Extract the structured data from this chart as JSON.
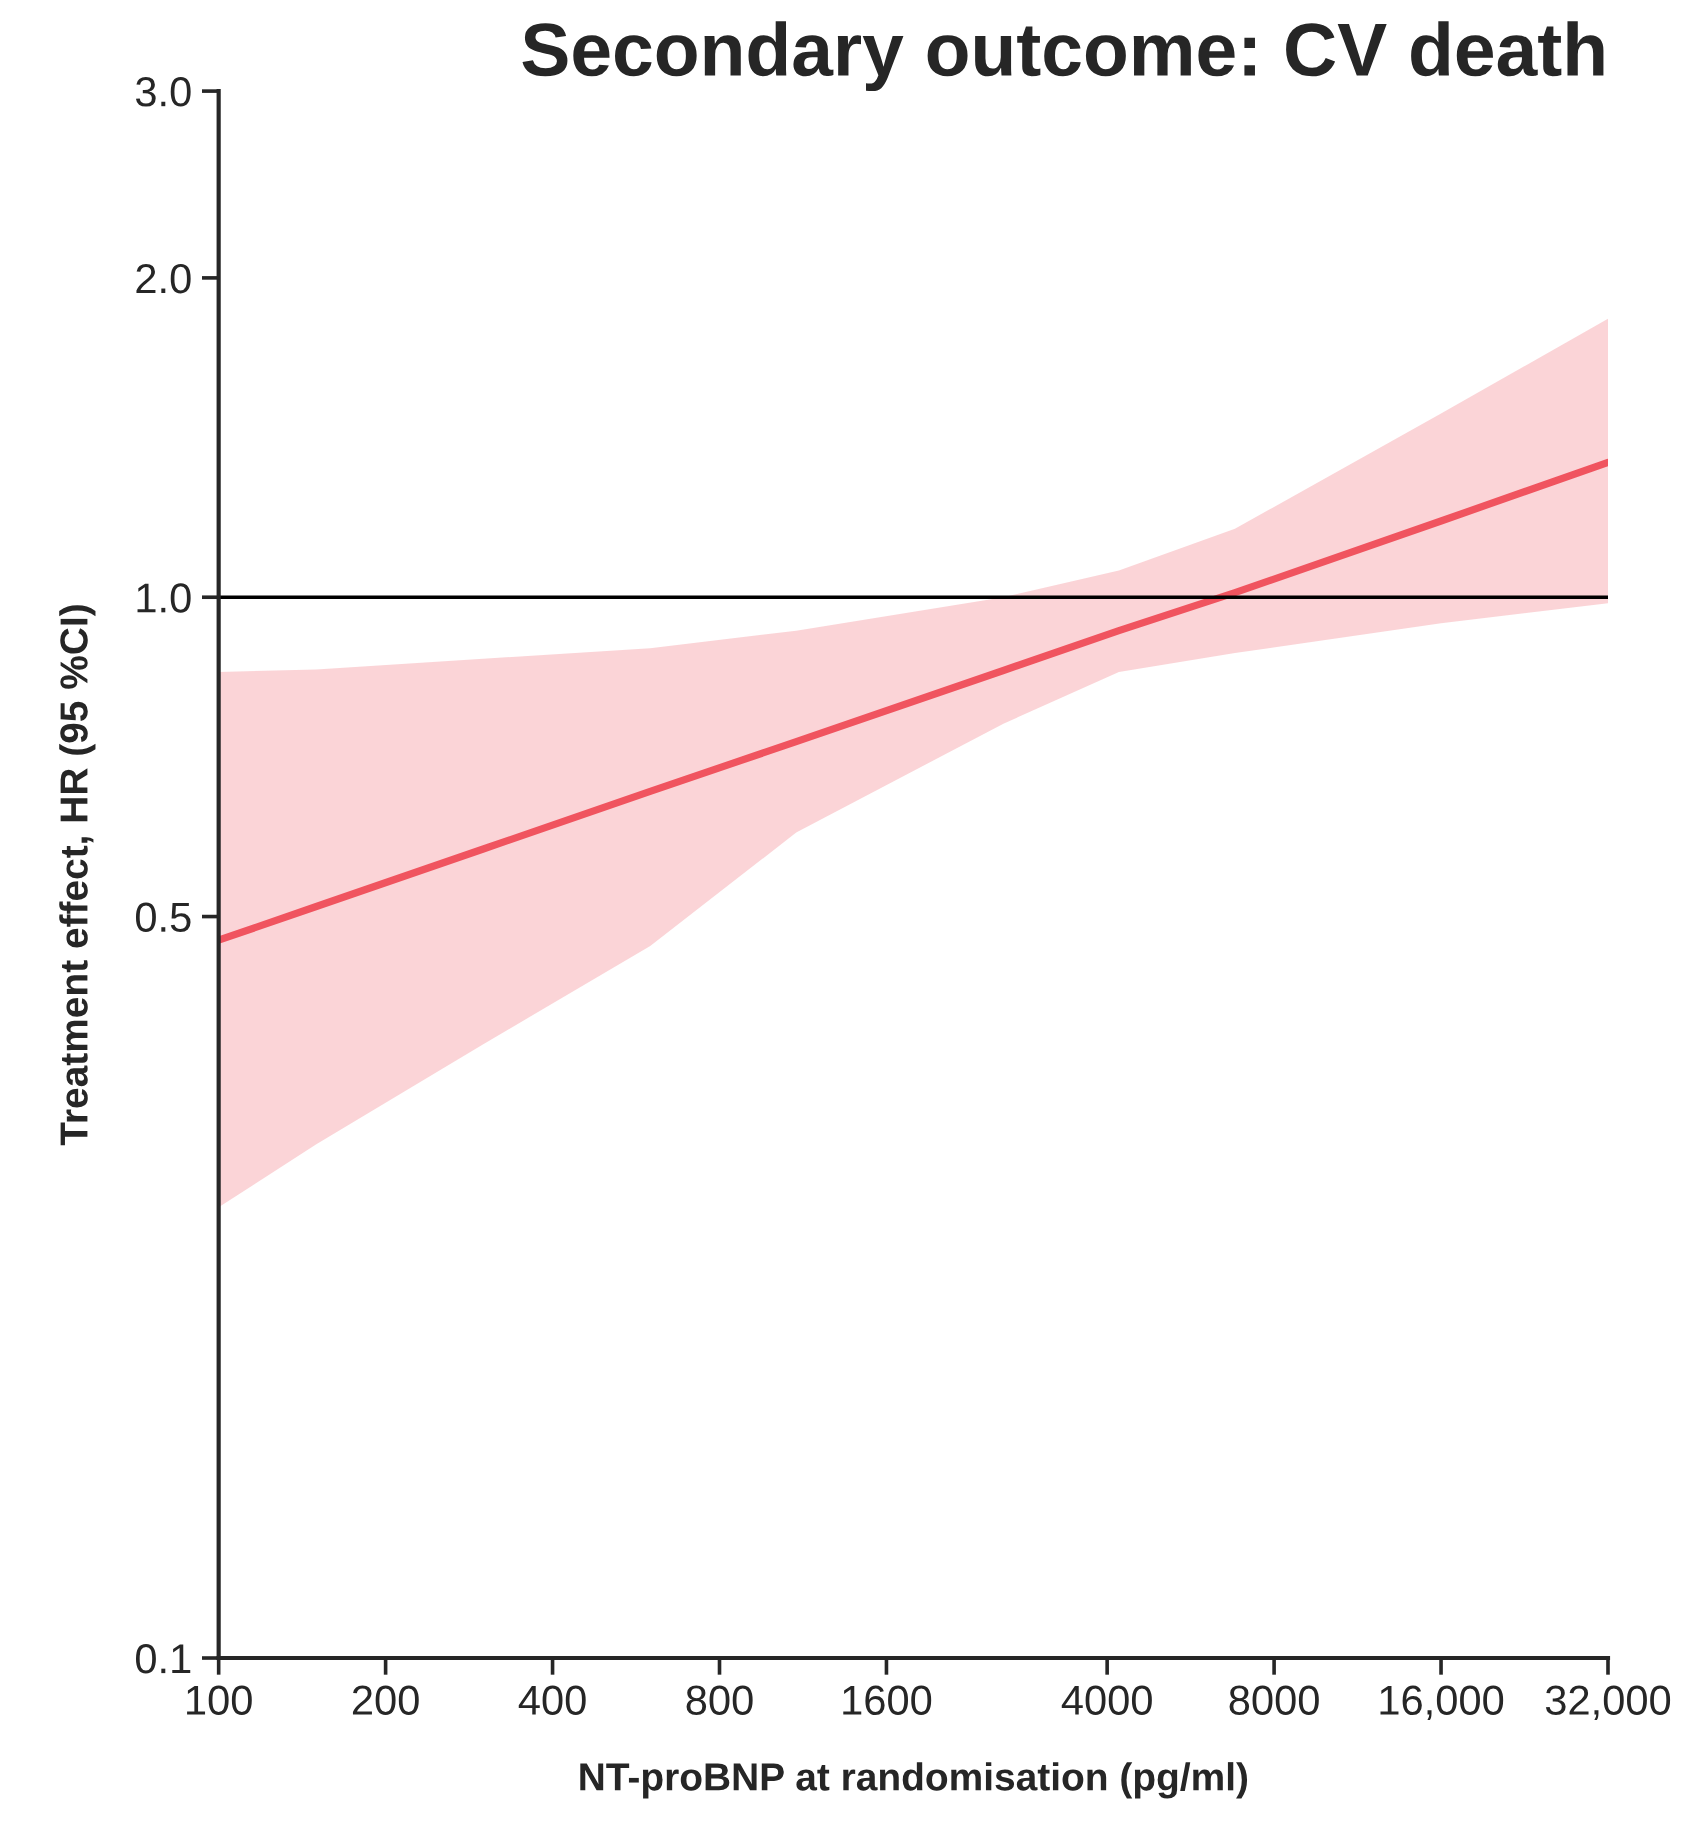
{
  "chart_data": {
    "type": "line",
    "title": "Secondary outcome: CV death",
    "xlabel": "NT-proBNP at randomisation (pg/ml)",
    "ylabel": "Treatment effect, HR (95 %CI)",
    "log": "xy",
    "grid": false,
    "legend": false,
    "marker": "none",
    "line_style": "solid",
    "xlim": [
      100,
      32000
    ],
    "xticks": [
      100,
      200,
      400,
      800,
      1600,
      4000,
      8000,
      {
        "value": 16000,
        "label": "16,000"
      },
      {
        "value": 32000,
        "label": "32,000"
      }
    ],
    "ylim": [
      0.1,
      3.0
    ],
    "yticks": [
      {
        "value": 0.1,
        "label": "0.1"
      },
      {
        "value": 0.5,
        "label": "0.5"
      },
      {
        "value": 1.0,
        "label": "1.0"
      },
      {
        "value": 2.0,
        "label": "2.0"
      },
      {
        "value": 3.0,
        "label": "3.0"
      }
    ],
    "ref_lines": [
      {
        "axis": "y",
        "value": 1.0,
        "color": "#000000"
      }
    ],
    "series": [
      {
        "color": "#f0545f",
        "x": [
          100,
          150,
          300,
          600,
          1100,
          2600,
          4200,
          6800,
          16000,
          32000
        ],
        "values": [
          0.475,
          0.511,
          0.579,
          0.656,
          0.731,
          0.853,
          0.93,
          1.01,
          1.18,
          1.34
        ],
        "lower": [
          0.266,
          0.305,
          0.379,
          0.469,
          0.6,
          0.76,
          0.85,
          0.886,
          0.945,
          0.987
        ],
        "upper": [
          0.85,
          0.855,
          0.875,
          0.895,
          0.93,
          1.0,
          1.06,
          1.16,
          1.49,
          1.83
        ]
      }
    ]
  }
}
